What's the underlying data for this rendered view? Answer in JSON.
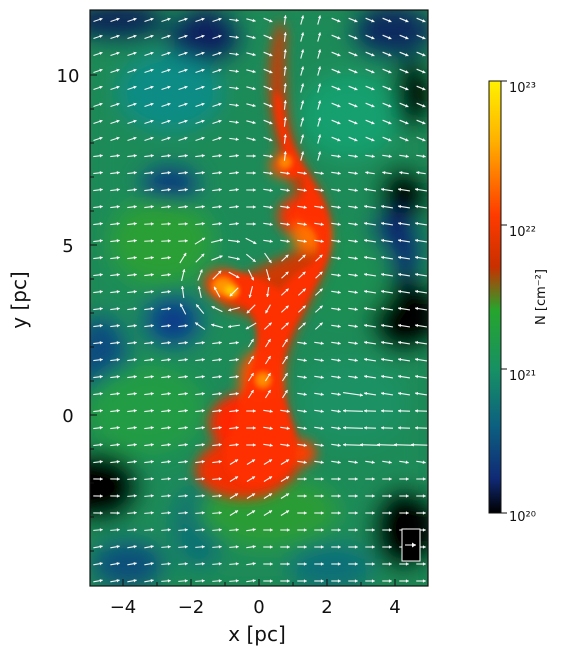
{
  "figure": {
    "x_axis_label": "x [pc]",
    "y_axis_label": "y [pc]",
    "x_tick_labels": [
      "−4",
      "−2",
      "0",
      "2",
      "4"
    ],
    "y_tick_labels": [
      "10",
      "5",
      "0"
    ],
    "colorbar_label": "N [cm⁻²]",
    "colorbar_tick_labels": [
      "10²³",
      "10²²",
      "10²¹",
      "10²⁰"
    ],
    "colorbar_colors": [
      "#ffff00",
      "#ff8c00",
      "#ff2a00",
      "#1fa11f",
      "#0e7a7a",
      "#102f78",
      "#000000"
    ],
    "legend_symbol": "scale-arrow"
  }
}
